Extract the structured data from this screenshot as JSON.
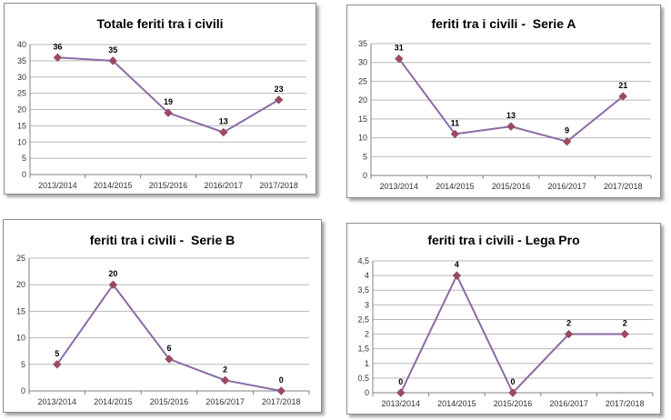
{
  "colors": {
    "line": "#8b6aa6",
    "marker": "#9a4a62",
    "grid": "#b8b8b8",
    "axis": "#808080"
  },
  "chart_data": [
    {
      "type": "line",
      "title": "Totale feriti tra i civili",
      "categories": [
        "2013/2014",
        "2014/2015",
        "2015/2016",
        "2016/2017",
        "2017/2018"
      ],
      "series": [
        {
          "values": [
            36,
            35,
            19,
            13,
            23
          ]
        }
      ],
      "ylim": [
        0,
        40
      ],
      "yticks": [
        "0",
        "5",
        "10",
        "15",
        "20",
        "25",
        "30",
        "35",
        "40"
      ],
      "grid": true,
      "legend": "none"
    },
    {
      "type": "line",
      "title": "feriti tra i civili -  Serie A",
      "categories": [
        "2013/2014",
        "2014/2015",
        "2015/2016",
        "2016/2017",
        "2017/2018"
      ],
      "series": [
        {
          "values": [
            31,
            11,
            13,
            9,
            21
          ]
        }
      ],
      "ylim": [
        0,
        35
      ],
      "yticks": [
        "0",
        "5",
        "10",
        "15",
        "20",
        "25",
        "30",
        "35"
      ],
      "grid": true,
      "legend": "none"
    },
    {
      "type": "line",
      "title": "feriti tra i civili -  Serie B",
      "categories": [
        "2013/2014",
        "2014/2015",
        "2015/2016",
        "2016/2017",
        "2017/2018"
      ],
      "series": [
        {
          "values": [
            5,
            20,
            6,
            2,
            0
          ]
        }
      ],
      "ylim": [
        0,
        25
      ],
      "yticks": [
        "0",
        "5",
        "10",
        "15",
        "20",
        "25"
      ],
      "grid": true,
      "legend": "none"
    },
    {
      "type": "line",
      "title": "feriti tra i civili - Lega Pro",
      "categories": [
        "2013/2014",
        "2014/2015",
        "2015/2016",
        "2016/2017",
        "2017/2018"
      ],
      "series": [
        {
          "values": [
            0,
            4,
            0,
            2,
            2
          ]
        }
      ],
      "ylim": [
        0,
        4.5
      ],
      "yticks": [
        "0",
        "0,5",
        "1",
        "1,5",
        "2",
        "2,5",
        "3",
        "3,5",
        "4",
        "4,5"
      ],
      "grid": true,
      "legend": "none"
    }
  ]
}
